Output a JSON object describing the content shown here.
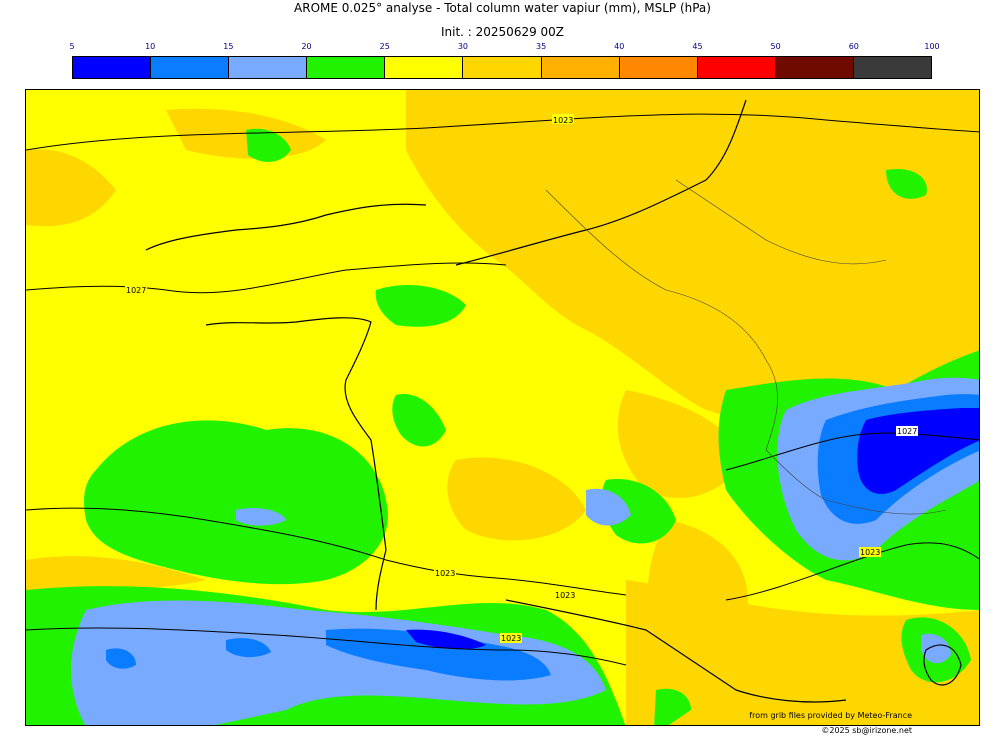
{
  "title_line1": "AROME 0.025° analyse - Total column water vapiur (mm), MSLP (hPa)",
  "title_line2": "Init. : 20250629 00Z",
  "colorbar": {
    "ticks": [
      "5",
      "10",
      "15",
      "20",
      "25",
      "30",
      "35",
      "40",
      "45",
      "50",
      "60",
      "100"
    ],
    "colors": [
      "#0000ff",
      "#0a7cff",
      "#78aaff",
      "#21f200",
      "#ffff00",
      "#ffd700",
      "#ffb000",
      "#ff8800",
      "#ff0000",
      "#6e0a00",
      "#3a3a3a"
    ]
  },
  "isobar_labels": [
    "1023",
    "1027",
    "1023",
    "1023",
    "1023",
    "1023",
    "1027"
  ],
  "credits": {
    "line1": "from grib files provided by Meteo-France",
    "line2": "©2025 sb@irizone.net"
  }
}
